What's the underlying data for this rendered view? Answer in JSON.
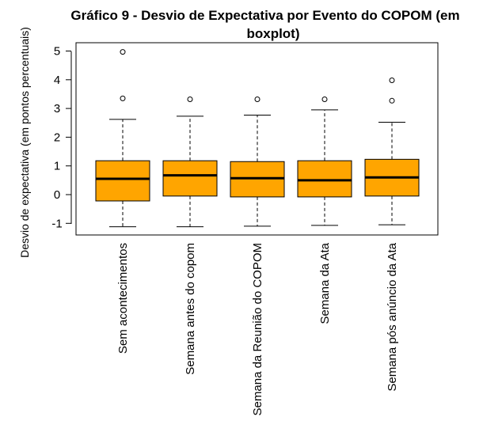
{
  "chart_data": {
    "type": "boxplot",
    "title_lines": [
      "Gráfico 9 - Desvio de Expectativa por Evento do COPOM (em",
      "boxplot)"
    ],
    "xlabel": "",
    "ylabel": "Desvio de expectativa (em pontos percentuais)",
    "ylim": [
      -1.4,
      5.4
    ],
    "yticks": [
      -1,
      0,
      1,
      2,
      3,
      4,
      5
    ],
    "box_color": "#FFA500",
    "categories": [
      "Sem acontecimentos",
      "Semana antes do copom",
      "Semana da Reunião do COPOM",
      "Semana da Ata",
      "Semana pós anúncio da Ata"
    ],
    "boxes": [
      {
        "whisker_low": -1.12,
        "q1": -0.22,
        "median": 0.55,
        "q3": 1.18,
        "whisker_high": 2.62,
        "outliers": [
          3.35,
          4.97
        ]
      },
      {
        "whisker_low": -1.12,
        "q1": -0.05,
        "median": 0.67,
        "q3": 1.18,
        "whisker_high": 2.73,
        "outliers": [
          3.32
        ]
      },
      {
        "whisker_low": -1.1,
        "q1": -0.08,
        "median": 0.57,
        "q3": 1.15,
        "whisker_high": 2.77,
        "outliers": [
          3.32
        ]
      },
      {
        "whisker_low": -1.07,
        "q1": -0.08,
        "median": 0.5,
        "q3": 1.18,
        "whisker_high": 2.95,
        "outliers": [
          3.32
        ]
      },
      {
        "whisker_low": -1.05,
        "q1": -0.05,
        "median": 0.6,
        "q3": 1.23,
        "whisker_high": 2.52,
        "outliers": [
          3.27,
          3.98
        ]
      }
    ]
  }
}
